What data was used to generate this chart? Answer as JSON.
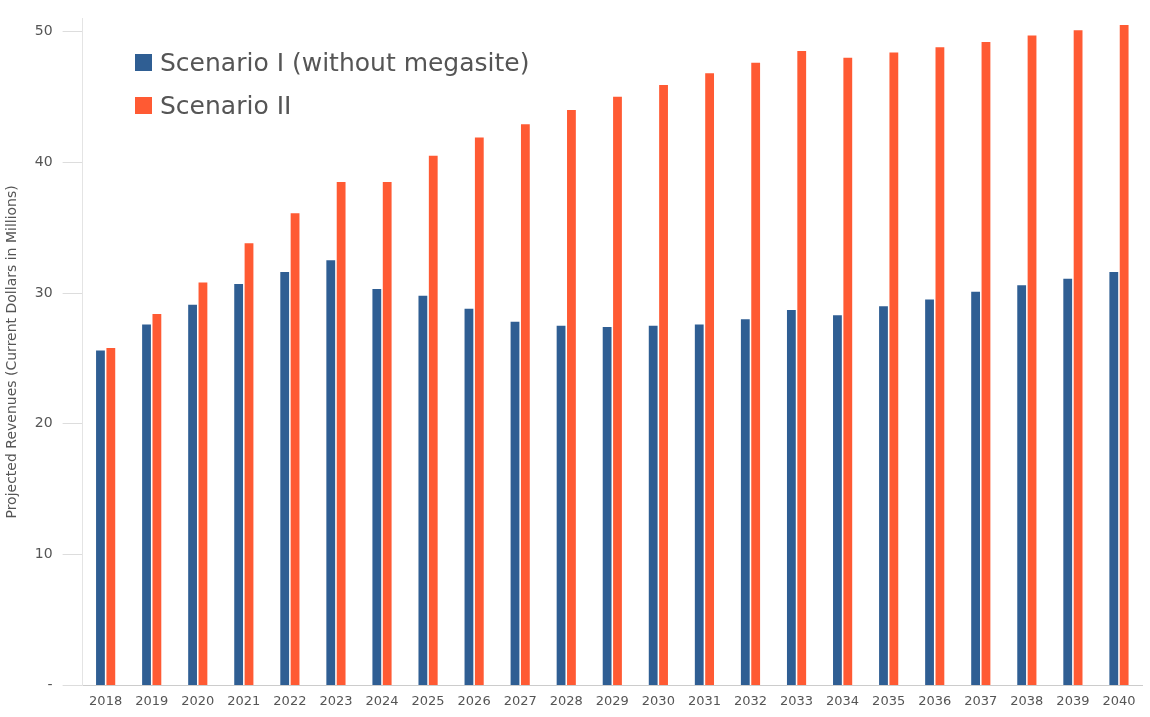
{
  "chart_data": {
    "type": "bar",
    "ylabel": "Projected Revenues (Current Dollars in Millions)",
    "categories": [
      "2018",
      "2019",
      "2020",
      "2021",
      "2022",
      "2023",
      "2024",
      "2025",
      "2026",
      "2027",
      "2028",
      "2029",
      "2030",
      "2031",
      "2032",
      "2033",
      "2034",
      "2035",
      "2036",
      "2037",
      "2038",
      "2039",
      "2040"
    ],
    "series": [
      {
        "name": "Scenario I (without megasite)",
        "color": "#2f5e93",
        "values": [
          25.6,
          27.6,
          29.1,
          30.7,
          31.6,
          32.5,
          30.3,
          29.8,
          28.8,
          27.8,
          27.5,
          27.4,
          27.5,
          27.6,
          28.0,
          28.7,
          28.3,
          29.0,
          29.5,
          30.1,
          30.6,
          31.1,
          31.6
        ]
      },
      {
        "name": "Scenario II",
        "color": "#ff5a33",
        "values": [
          25.8,
          28.4,
          30.8,
          33.8,
          36.1,
          38.5,
          38.5,
          40.5,
          41.9,
          42.9,
          44.0,
          45.0,
          45.9,
          46.8,
          47.6,
          48.5,
          48.0,
          48.4,
          48.8,
          49.2,
          49.7,
          50.1,
          50.5
        ]
      }
    ],
    "ylim": [
      0,
      51
    ],
    "yticks": [
      {
        "value": 0,
        "label": "-"
      },
      10,
      20,
      30,
      40,
      50
    ],
    "grid": false,
    "legend": "top left"
  }
}
